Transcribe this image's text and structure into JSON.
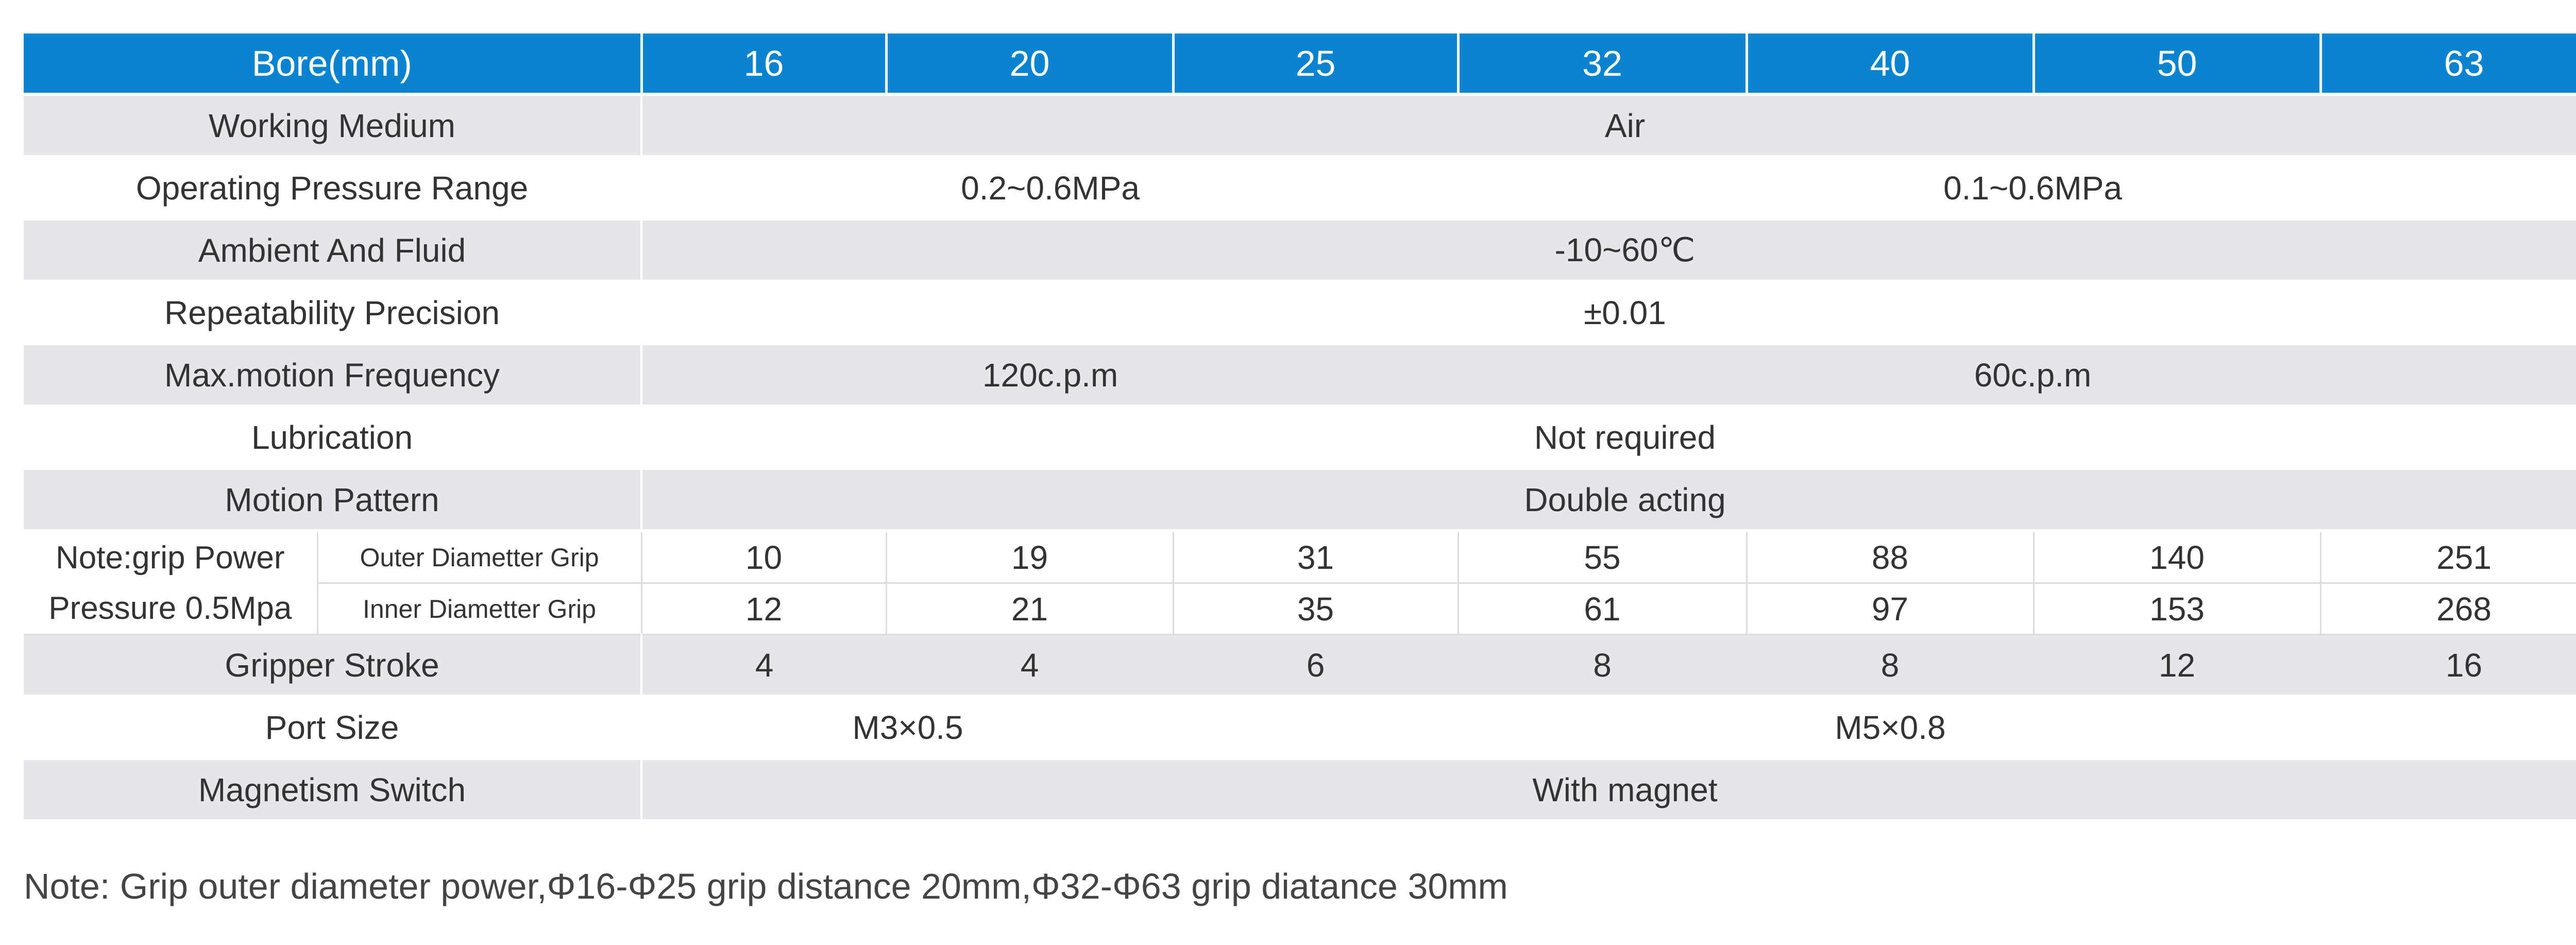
{
  "table": {
    "header": [
      "Bore(mm)",
      "16",
      "20",
      "25",
      "32",
      "40",
      "50",
      "63"
    ],
    "rows_top": [
      {
        "label": "Working Medium",
        "cells": [
          "Air"
        ]
      },
      {
        "label": "Operating Pressure Range",
        "cells": [
          "0.2~0.6MPa",
          "0.1~0.6MPa"
        ]
      },
      {
        "label": "Ambient And Fluid",
        "cells": [
          "-10~60℃"
        ]
      },
      {
        "label": "Repeatability Precision",
        "cells": [
          "±0.01"
        ]
      },
      {
        "label": "Max.motion Frequency",
        "cells": [
          "120c.p.m",
          "60c.p.m"
        ]
      },
      {
        "label": "Lubrication",
        "cells": [
          "Not required"
        ]
      },
      {
        "label": "Motion Pattern",
        "cells": [
          "Double acting"
        ]
      }
    ],
    "grip": {
      "label": [
        "Note:grip Power",
        "Pressure 0.5Mpa"
      ],
      "rows": [
        {
          "label": "Outer Diametter Grip",
          "cells": [
            "10",
            "19",
            "31",
            "55",
            "88",
            "140",
            "251"
          ]
        },
        {
          "label": "Inner Diametter Grip",
          "cells": [
            "12",
            "21",
            "35",
            "61",
            "97",
            "153",
            "268"
          ]
        }
      ]
    },
    "rows_bottom": [
      {
        "label": "Gripper Stroke",
        "cells": [
          "4",
          "4",
          "6",
          "8",
          "8",
          "12",
          "16"
        ]
      },
      {
        "label": "Port Size",
        "cells": [
          "M3×0.5",
          "M5×0.8"
        ]
      },
      {
        "label": "Magnetism Switch",
        "cells": [
          "With magnet"
        ]
      }
    ]
  },
  "note": "Note: Grip outer diameter power,Φ16-Φ25 grip distance 20mm,Φ32-Φ63 grip diatance 30mm"
}
